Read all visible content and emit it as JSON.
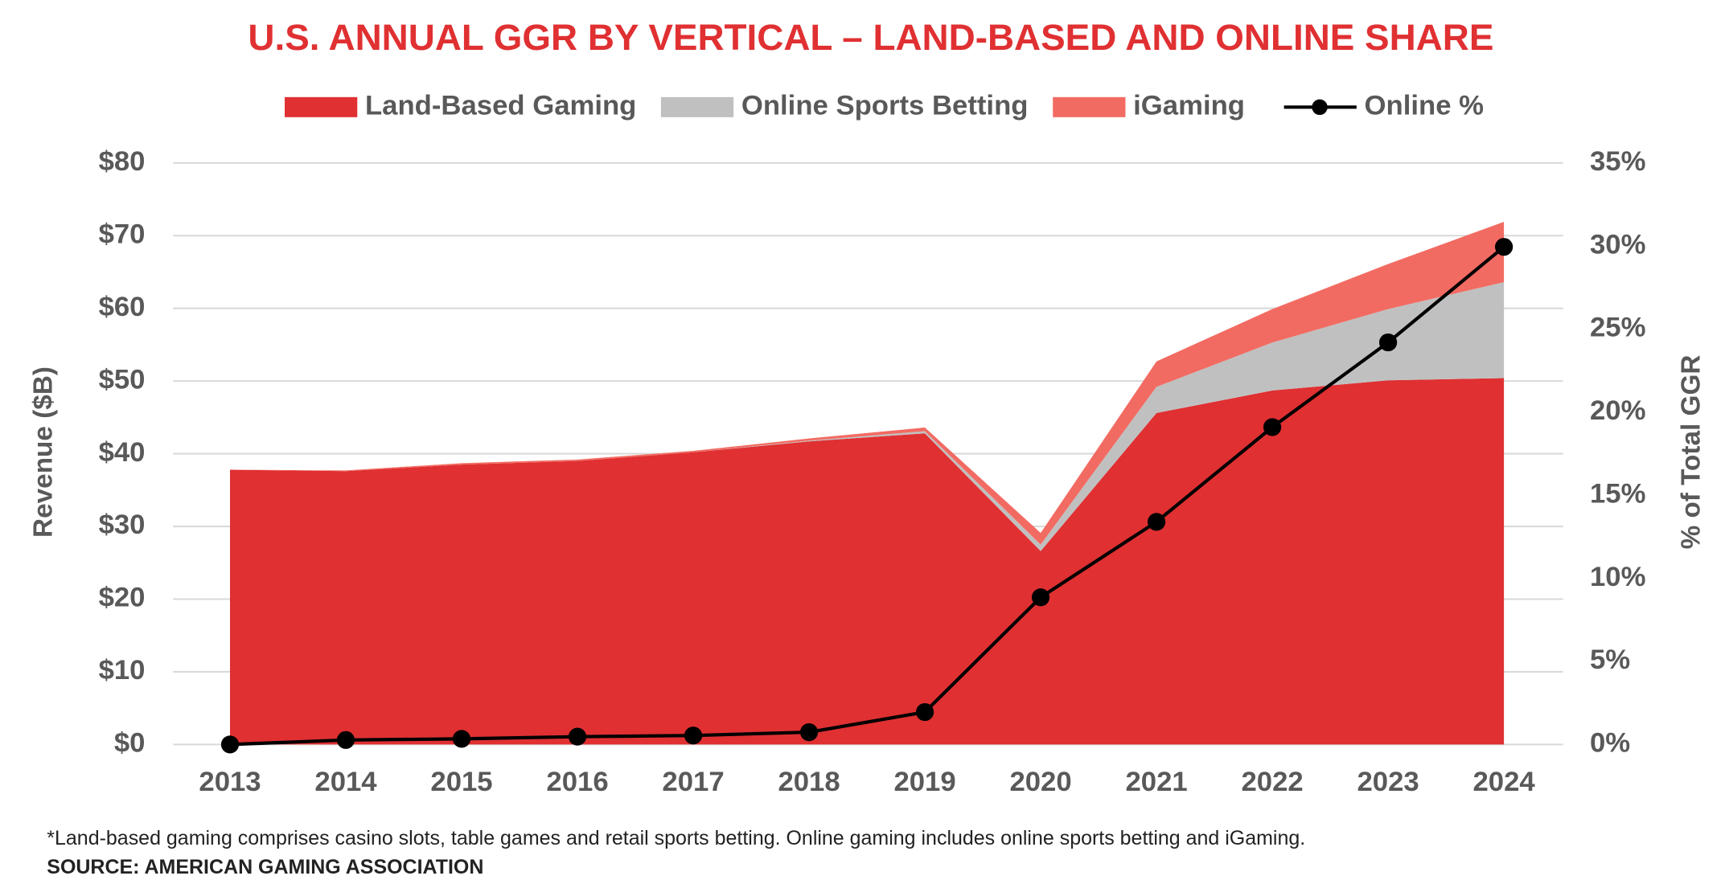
{
  "chart_data": {
    "type": "area",
    "title": "U.S. ANNUAL GGR BY VERTICAL – LAND-BASED AND ONLINE SHARE",
    "y_label": "Revenue ($B)",
    "y2_label": "% of Total GGR",
    "categories": [
      "2013",
      "2014",
      "2015",
      "2016",
      "2017",
      "2018",
      "2019",
      "2020",
      "2021",
      "2022",
      "2023",
      "2024"
    ],
    "series": [
      {
        "name": "Land-Based Gaming",
        "color": "#e03032",
        "stacked": true,
        "values": [
          37.8,
          37.6,
          38.5,
          39.0,
          40.2,
          41.7,
          42.8,
          26.6,
          45.6,
          48.7,
          50.1,
          50.4
        ]
      },
      {
        "name": "Online Sports Betting",
        "color": "#c0c0c0",
        "stacked": true,
        "values": [
          0,
          0,
          0,
          0,
          0,
          0.1,
          0.3,
          0.9,
          3.6,
          6.6,
          9.8,
          13.2
        ]
      },
      {
        "name": "iGaming",
        "color": "#f26b62",
        "stacked": true,
        "values": [
          0,
          0.1,
          0.2,
          0.2,
          0.2,
          0.3,
          0.5,
          1.6,
          3.5,
          4.6,
          6.2,
          8.3
        ]
      },
      {
        "name": "Online %",
        "color": "#000000",
        "type": "line",
        "axis": "y2",
        "values": [
          0.0,
          0.27,
          0.34,
          0.47,
          0.54,
          0.74,
          1.95,
          8.86,
          13.4,
          19.1,
          24.2,
          29.95
        ]
      }
    ],
    "ylim": [
      0,
      80
    ],
    "yticks": [
      {
        "value": 0,
        "label": "$0"
      },
      {
        "value": 10,
        "label": "$10"
      },
      {
        "value": 20,
        "label": "$20"
      },
      {
        "value": 30,
        "label": "$30"
      },
      {
        "value": 40,
        "label": "$40"
      },
      {
        "value": 50,
        "label": "$50"
      },
      {
        "value": 60,
        "label": "$60"
      },
      {
        "value": 70,
        "label": "$70"
      },
      {
        "value": 80,
        "label": "$80"
      }
    ],
    "y2lim": [
      0,
      35
    ],
    "y2ticks": [
      {
        "value": 0,
        "label": "0%"
      },
      {
        "value": 5,
        "label": "5%"
      },
      {
        "value": 10,
        "label": "10%"
      },
      {
        "value": 15,
        "label": "15%"
      },
      {
        "value": 20,
        "label": "20%"
      },
      {
        "value": 25,
        "label": "25%"
      },
      {
        "value": 30,
        "label": "30%"
      },
      {
        "value": 35,
        "label": "35%"
      }
    ],
    "grid": true,
    "legend": "top",
    "footnote": "*Land-based gaming comprises casino slots, table games and retail sports betting. Online gaming includes online sports betting and iGaming.",
    "source": "SOURCE: AMERICAN GAMING ASSOCIATION"
  }
}
